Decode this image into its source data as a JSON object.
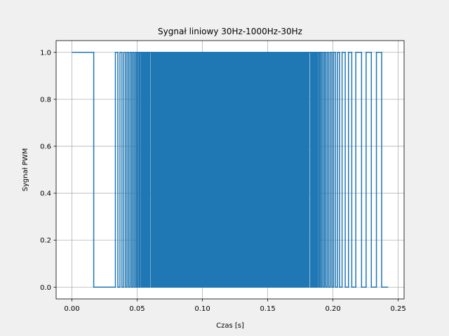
{
  "chart_data": {
    "type": "line",
    "title": "Sygnał liniowy 30Hz-1000Hz-30Hz",
    "xlabel": "Czas [s]",
    "ylabel": "Sygnał PWM",
    "xlim": [
      -0.0121,
      0.2545
    ],
    "ylim": [
      -0.05,
      1.05
    ],
    "grid": true,
    "series_color": "#1f77b4",
    "xticks": [
      0.0,
      0.05,
      0.1,
      0.15,
      0.2,
      0.25
    ],
    "xtick_labels": [
      "0.00",
      "0.05",
      "0.10",
      "0.15",
      "0.20",
      "0.25"
    ],
    "yticks": [
      0.0,
      0.2,
      0.4,
      0.6,
      0.8,
      1.0
    ],
    "ytick_labels": [
      "0.0",
      "0.2",
      "0.4",
      "0.6",
      "0.8",
      "1.0"
    ],
    "series": [
      {
        "x": [
          0.0,
          0.0167,
          0.0167,
          0.0333,
          0.0333,
          0.0352,
          0.0352,
          0.0368,
          0.0368,
          0.0383,
          0.0383,
          0.0397,
          0.0397,
          0.041,
          0.041,
          0.0422,
          0.0422,
          0.0434,
          0.0434,
          0.0445,
          0.0445,
          0.0456,
          0.0456,
          0.0466,
          0.0466,
          0.0476,
          0.0476,
          0.0486,
          0.0486,
          0.0495,
          0.0495,
          0.0504,
          0.0504,
          0.0513,
          0.0513,
          0.0521,
          0.0521,
          0.053,
          0.053,
          0.0538,
          0.0538,
          0.0546,
          0.0546,
          0.0553,
          0.0553,
          0.0561,
          0.0561,
          0.0568,
          0.0568,
          0.0575,
          0.0575,
          0.0582,
          0.0582,
          0.0589,
          0.0589,
          0.0596,
          0.0596,
          0.0602
        ],
        "y": [
          1,
          1,
          0,
          0,
          1,
          1,
          0,
          0,
          1,
          1,
          0,
          0,
          1,
          1,
          0,
          0,
          1,
          1,
          0,
          0,
          1,
          1,
          0,
          0,
          1,
          1,
          0,
          0,
          1,
          1,
          0,
          0,
          1,
          1,
          0,
          0,
          1,
          1,
          0,
          0,
          1,
          1,
          0,
          0,
          1,
          1,
          0,
          0,
          1,
          1,
          0,
          0,
          1,
          1,
          0,
          0,
          1,
          1
        ]
      },
      {
        "x": [
          0.0602,
          0.1822
        ],
        "y": [
          1,
          1
        ],
        "fill_band": [
          0,
          1
        ]
      },
      {
        "x": [
          0.1822,
          0.1829,
          0.1829,
          0.1836,
          0.1836,
          0.1843,
          0.1843,
          0.185,
          0.185,
          0.1858,
          0.1858,
          0.1865,
          0.1865,
          0.1873,
          0.1873,
          0.1881,
          0.1881,
          0.189,
          0.189,
          0.1898,
          0.1898,
          0.1907,
          0.1907,
          0.1916,
          0.1916,
          0.1926,
          0.1926,
          0.1936,
          0.1936,
          0.1946,
          0.1946,
          0.1957,
          0.1957,
          0.1968,
          0.1968,
          0.198,
          0.198,
          0.1992,
          0.1992,
          0.2005,
          0.2005,
          0.2019,
          0.2019,
          0.2034,
          0.2034,
          0.205,
          0.205,
          0.207,
          0.207,
          0.2094,
          0.2094,
          0.2119,
          0.2119,
          0.2144,
          0.2144,
          0.2175,
          0.2175,
          0.2219,
          0.2219,
          0.2254,
          0.2254,
          0.2294,
          0.2294,
          0.2333,
          0.2333,
          0.2373,
          0.2373,
          0.2423
        ],
        "y": [
          1,
          1,
          0,
          0,
          1,
          1,
          0,
          0,
          1,
          1,
          0,
          0,
          1,
          1,
          0,
          0,
          1,
          1,
          0,
          0,
          1,
          1,
          0,
          0,
          1,
          1,
          0,
          0,
          1,
          1,
          0,
          0,
          1,
          1,
          0,
          0,
          1,
          1,
          0,
          0,
          1,
          1,
          0,
          0,
          1,
          1,
          0,
          0,
          1,
          1,
          0,
          0,
          1,
          1,
          0,
          0,
          1,
          1,
          0,
          0,
          1,
          1,
          0,
          0,
          1,
          1,
          0,
          0
        ]
      }
    ]
  }
}
